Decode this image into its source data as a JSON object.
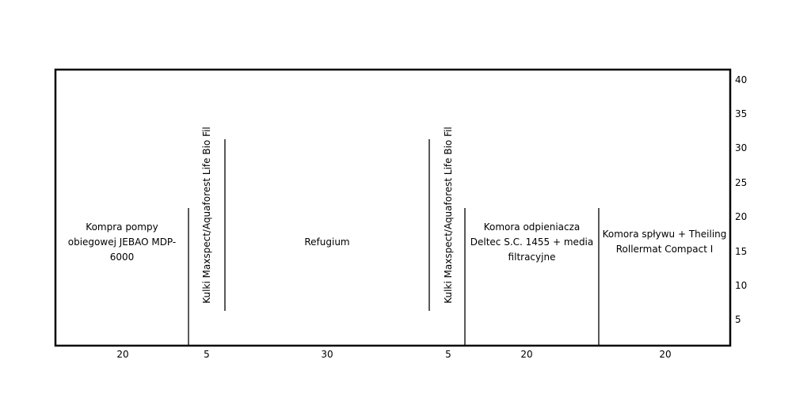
{
  "sections": [
    {
      "label": "Kompra pompy obiegowej JEBAO MDP-6000",
      "width": 20
    },
    {
      "label": "Kulki Maxspect/Aquaforest Life Bio Fil",
      "width": 5
    },
    {
      "label": "Refugium",
      "width": 30
    },
    {
      "label": "Kulki Maxspect/Aquaforest Life Bio Fil",
      "width": 5
    },
    {
      "label": "Komora odpieniacza Deltec S.C. 1455 + media filtracyjne",
      "width": 20
    },
    {
      "label": "Komora spływu + Theiling Rollermat Compact I",
      "width": 20
    }
  ],
  "height_scale": [
    40,
    35,
    30,
    25,
    20,
    15,
    10,
    5
  ]
}
